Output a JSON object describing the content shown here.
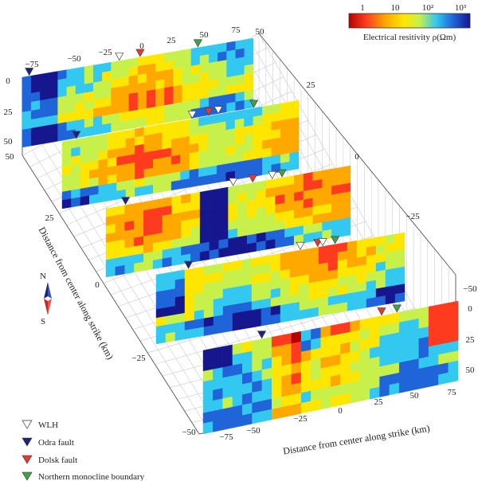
{
  "colorbar": {
    "label": "Electrical resitivity ρ(Ωm)",
    "ticks": [
      "1",
      "10",
      "10²",
      "10³"
    ],
    "colors": [
      "#b50000",
      "#ff3b1f",
      "#ffa800",
      "#ffe600",
      "#c8f04a",
      "#33c8f0",
      "#1f64d8",
      "#16168f"
    ]
  },
  "axes": {
    "x_label": "Distance from center along strike (km)",
    "y_label": "Distance from center along strike (km)",
    "x_ticks_bottom": [
      "−75",
      "−50",
      "−25",
      "0",
      "25",
      "50",
      "75"
    ],
    "x_ticks_top": [
      "−75",
      "−50",
      "−25",
      "0",
      "25",
      "50",
      "75"
    ],
    "y_ticks_left": [
      "50",
      "25",
      "0",
      "−25",
      "−50"
    ],
    "y_ticks_right": [
      "25",
      "0",
      "−25",
      "−50"
    ],
    "depth_ticks_left": [
      "0",
      "25",
      "50"
    ],
    "depth_ticks_right": [
      "0",
      "25",
      "50"
    ]
  },
  "compass": {
    "north": "N",
    "south": "S"
  },
  "legend": [
    {
      "label": "WLH",
      "color": "#ffffff",
      "icon": "white-triangle-icon"
    },
    {
      "label": "Odra fault",
      "color": "#1a237e",
      "icon": "navy-triangle-icon"
    },
    {
      "label": "Dolsk fault",
      "color": "#e53935",
      "icon": "red-triangle-icon"
    },
    {
      "label": "Northern monocline boundary",
      "color": "#43a047",
      "icon": "green-triangle-icon"
    }
  ]
}
